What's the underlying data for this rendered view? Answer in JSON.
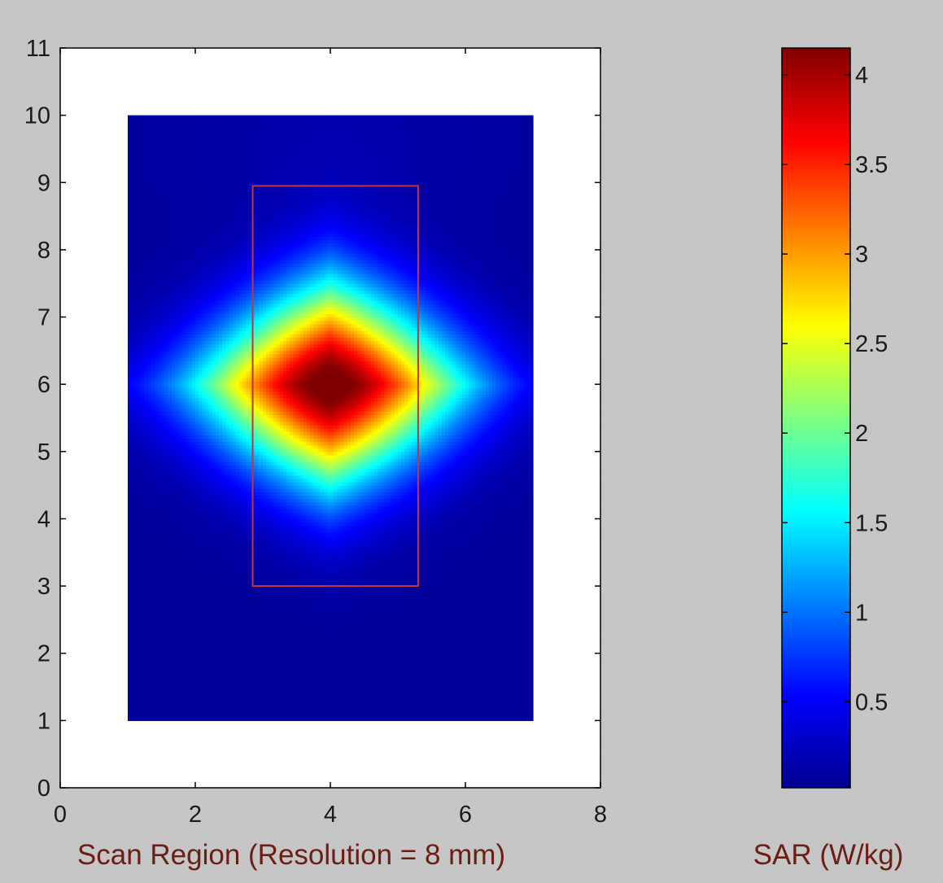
{
  "chart_data": {
    "type": "heatmap",
    "title": "",
    "xlabel": "Scan Region (Resolution = 8 mm)",
    "ylabel": "",
    "xlim": [
      0,
      8
    ],
    "ylim": [
      0,
      11
    ],
    "x_ticks": [
      0,
      2,
      4,
      6,
      8
    ],
    "y_ticks": [
      0,
      1,
      2,
      3,
      4,
      5,
      6,
      7,
      8,
      9,
      10,
      11
    ],
    "grid": false,
    "colormap": "jet",
    "heatmap": {
      "x_range": [
        1,
        7
      ],
      "y_range": [
        1,
        10
      ],
      "peak": {
        "x": 4,
        "y": 6,
        "value": 4.15
      },
      "min_value": 0.02
    },
    "highlight_rectangle": {
      "x_range": [
        2.85,
        5.3
      ],
      "y_range": [
        3,
        8.95
      ],
      "color": "#c8323c"
    },
    "colorbar": {
      "label": "SAR (W/kg)",
      "range": [
        0.02,
        4.15
      ],
      "ticks": [
        0.5,
        1,
        1.5,
        2,
        2.5,
        3,
        3.5,
        4
      ]
    }
  }
}
